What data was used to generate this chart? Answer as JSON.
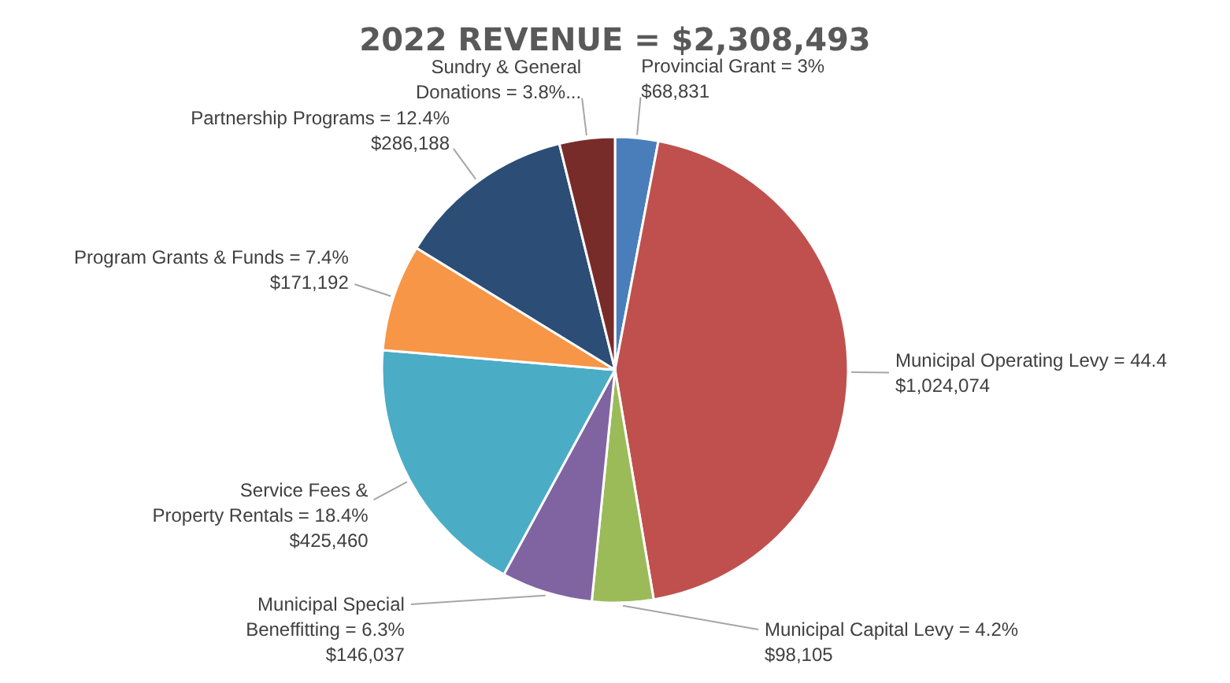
{
  "chart_data": {
    "type": "pie",
    "title": "2022 REVENUE = $2,308,493",
    "categories": [
      "Provincial Grant = 3%",
      "Municipal Operating Levy = 44.4",
      "Municipal Capital Levy = 4.2%",
      "Municipal Special\nBeneffitting = 6.3%",
      "Service Fees &\nProperty Rentals = 18.4%",
      "Program Grants & Funds = 7.4%",
      "Partnership Programs = 12.4%",
      "Sundry & General\nDonations = 3.8%..."
    ],
    "values": [
      68831,
      1024074,
      98105,
      146037,
      425460,
      171192,
      286188,
      88606
    ],
    "value_labels": [
      "$68,831",
      "$1,024,074",
      "$98,105",
      "$146,037",
      "$425,460",
      "$171,192",
      "$286,188",
      null
    ],
    "colors": [
      "#4a7ebb",
      "#c0504d",
      "#9bbb59",
      "#8064a2",
      "#4bacc6",
      "#f79646",
      "#2c4d75",
      "#772c2a"
    ]
  }
}
